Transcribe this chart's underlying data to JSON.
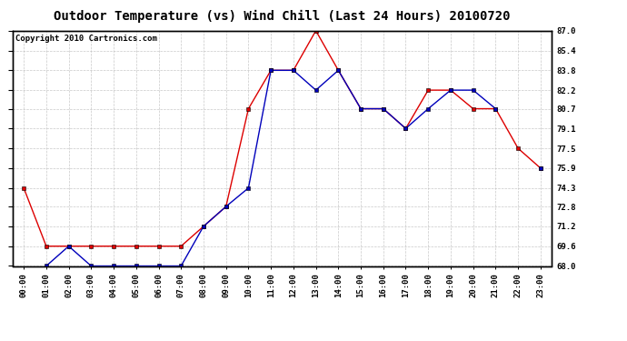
{
  "title": "Outdoor Temperature (vs) Wind Chill (Last 24 Hours) 20100720",
  "copyright": "Copyright 2010 Cartronics.com",
  "x_labels": [
    "00:00",
    "01:00",
    "02:00",
    "03:00",
    "04:00",
    "05:00",
    "06:00",
    "07:00",
    "08:00",
    "09:00",
    "10:00",
    "11:00",
    "12:00",
    "13:00",
    "14:00",
    "15:00",
    "16:00",
    "17:00",
    "18:00",
    "19:00",
    "20:00",
    "21:00",
    "22:00",
    "23:00"
  ],
  "temp": [
    74.3,
    69.6,
    69.6,
    69.6,
    69.6,
    69.6,
    69.6,
    69.6,
    71.2,
    72.8,
    80.7,
    83.8,
    83.8,
    87.0,
    83.8,
    80.7,
    80.7,
    79.1,
    82.2,
    82.2,
    80.7,
    80.7,
    77.5,
    75.9
  ],
  "wind_chill": [
    null,
    68.0,
    69.6,
    68.0,
    68.0,
    68.0,
    68.0,
    68.0,
    71.2,
    72.8,
    74.3,
    83.8,
    83.8,
    82.2,
    83.8,
    80.7,
    80.7,
    79.1,
    80.7,
    82.2,
    82.2,
    80.7,
    null,
    75.9
  ],
  "ylim_min": 68.0,
  "ylim_max": 87.0,
  "yticks": [
    68.0,
    69.6,
    71.2,
    72.8,
    74.3,
    75.9,
    77.5,
    79.1,
    80.7,
    82.2,
    83.8,
    85.4,
    87.0
  ],
  "temp_color": "#dd0000",
  "wind_chill_color": "#0000bb",
  "bg_color": "#ffffff",
  "grid_color": "#bbbbbb",
  "title_fontsize": 10,
  "copyright_fontsize": 6.5
}
